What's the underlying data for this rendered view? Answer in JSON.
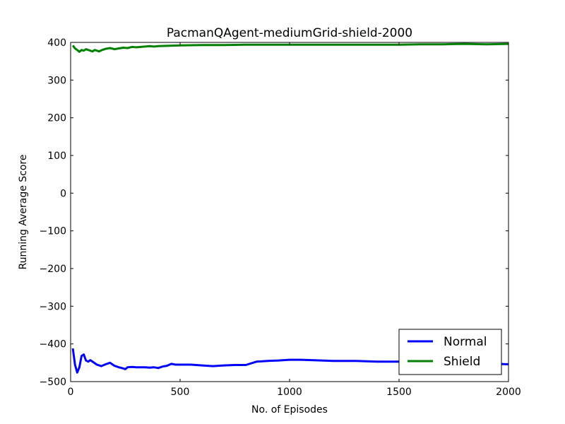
{
  "chart_data": {
    "type": "line",
    "title": "PacmanQAgent-mediumGrid-shield-2000",
    "xlabel": "No. of Episodes",
    "ylabel": "Running Average Score",
    "xlim": [
      0,
      2000
    ],
    "ylim": [
      -500,
      400
    ],
    "xticks": [
      0,
      500,
      1000,
      1500,
      2000
    ],
    "yticks": [
      -500,
      -400,
      -300,
      -200,
      -100,
      0,
      100,
      200,
      300,
      400
    ],
    "grid": false,
    "legend_position": "lower-right",
    "series": [
      {
        "name": "Normal",
        "color": "#0000ff",
        "x": [
          10,
          20,
          30,
          40,
          50,
          60,
          70,
          80,
          90,
          100,
          120,
          140,
          160,
          180,
          200,
          220,
          240,
          250,
          260,
          280,
          300,
          320,
          340,
          360,
          380,
          400,
          420,
          440,
          460,
          480,
          500,
          550,
          600,
          650,
          700,
          750,
          800,
          850,
          900,
          950,
          1000,
          1050,
          1100,
          1200,
          1300,
          1400,
          1500,
          1600,
          1700,
          1800,
          1900,
          2000
        ],
        "y": [
          -412,
          -455,
          -476,
          -462,
          -432,
          -428,
          -444,
          -447,
          -443,
          -447,
          -455,
          -459,
          -454,
          -450,
          -458,
          -462,
          -465,
          -467,
          -462,
          -461,
          -462,
          -462,
          -462,
          -463,
          -462,
          -464,
          -460,
          -458,
          -453,
          -455,
          -455,
          -455,
          -457,
          -459,
          -457,
          -456,
          -456,
          -447,
          -445,
          -444,
          -442,
          -442,
          -443,
          -445,
          -445,
          -447,
          -447,
          -447,
          -448,
          -449,
          -452,
          -454
        ]
      },
      {
        "name": "Shield",
        "color": "#008000",
        "x": [
          10,
          20,
          30,
          40,
          50,
          60,
          70,
          80,
          90,
          100,
          110,
          120,
          130,
          140,
          160,
          180,
          200,
          220,
          240,
          260,
          280,
          300,
          320,
          340,
          360,
          380,
          400,
          450,
          500,
          600,
          700,
          800,
          900,
          1000,
          1100,
          1200,
          1300,
          1400,
          1500,
          1600,
          1700,
          1800,
          1900,
          2000
        ],
        "y": [
          392,
          384,
          380,
          375,
          380,
          378,
          382,
          380,
          378,
          376,
          380,
          378,
          376,
          379,
          383,
          385,
          382,
          384,
          386,
          385,
          388,
          387,
          388,
          389,
          390,
          389,
          390,
          391,
          392,
          393,
          393,
          394,
          394,
          394,
          394,
          394,
          394,
          394,
          394,
          395,
          395,
          396,
          395,
          396
        ]
      }
    ]
  }
}
